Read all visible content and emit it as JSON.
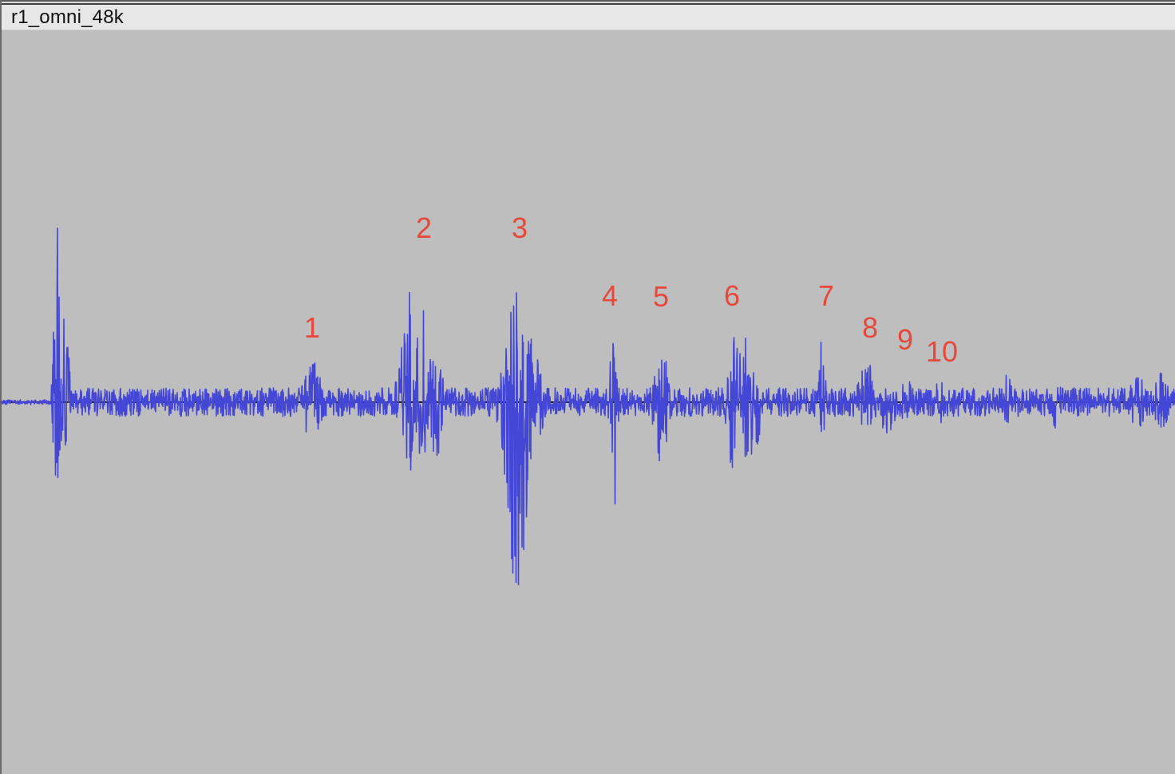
{
  "track": {
    "name": "r1_omni_48k"
  },
  "colors": {
    "background": "#bebebe",
    "waveform": "#4447d6",
    "baseline": "#1a1a1a",
    "marker": "#e8483c",
    "title_bar": "#e7e7e7"
  },
  "markers": [
    {
      "label": "1"
    },
    {
      "label": "2"
    },
    {
      "label": "3"
    },
    {
      "label": "4"
    },
    {
      "label": "5"
    },
    {
      "label": "6"
    },
    {
      "label": "7"
    },
    {
      "label": "8"
    },
    {
      "label": "9"
    },
    {
      "label": "10"
    }
  ]
}
